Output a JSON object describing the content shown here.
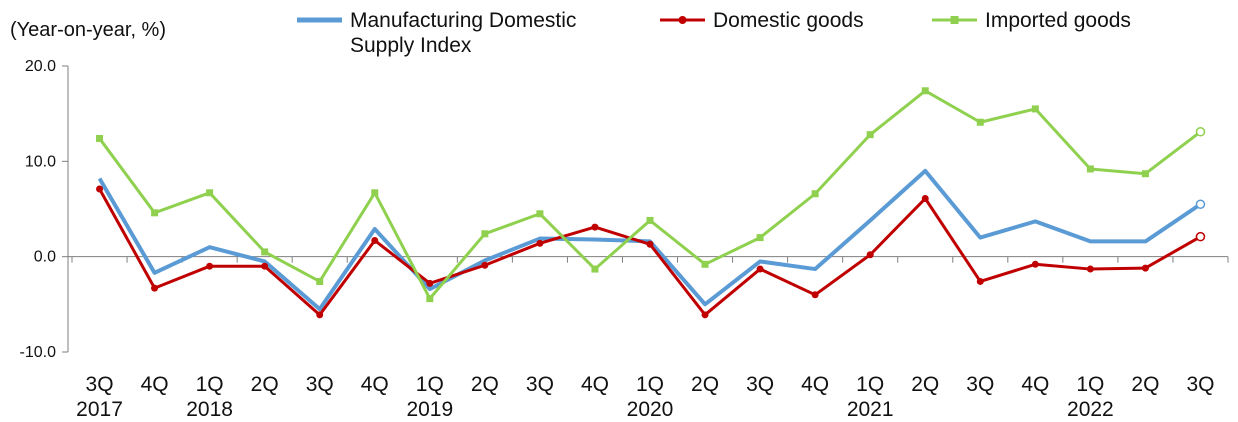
{
  "chart_data": {
    "type": "line",
    "unit_label": "(Year-on-year, %)",
    "categories": [
      "3Q 2017",
      "4Q",
      "1Q 2018",
      "2Q",
      "3Q",
      "4Q",
      "1Q 2019",
      "2Q",
      "3Q",
      "4Q",
      "1Q 2020",
      "2Q",
      "3Q",
      "4Q",
      "1Q 2021",
      "2Q",
      "3Q",
      "4Q",
      "1Q 2022",
      "2Q",
      "3Q"
    ],
    "x_tick_lines": [
      [
        "3Q",
        "2017"
      ],
      [
        "4Q"
      ],
      [
        "1Q",
        "2018"
      ],
      [
        "2Q"
      ],
      [
        "3Q"
      ],
      [
        "4Q"
      ],
      [
        "1Q",
        "2019"
      ],
      [
        "2Q"
      ],
      [
        "3Q"
      ],
      [
        "4Q"
      ],
      [
        "1Q",
        "2020"
      ],
      [
        "2Q"
      ],
      [
        "3Q"
      ],
      [
        "4Q"
      ],
      [
        "1Q",
        "2021"
      ],
      [
        "2Q"
      ],
      [
        "3Q"
      ],
      [
        "4Q"
      ],
      [
        "1Q",
        "2022"
      ],
      [
        "2Q"
      ],
      [
        "3Q"
      ]
    ],
    "y_ticks": [
      "20.0",
      "10.0",
      "0.0",
      "-10.0"
    ],
    "y_tick_values": [
      20,
      10,
      0,
      -10
    ],
    "ylim": [
      -10,
      20
    ],
    "grid": false,
    "legend_position": "top",
    "series": [
      {
        "name": "Manufacturing Domestic Supply Index",
        "legend_lines": [
          "Manufacturing Domestic",
          "Supply Index"
        ],
        "color": "#5B9BD5",
        "marker": "none",
        "last_point_open": true,
        "values": [
          8.2,
          -1.7,
          1.0,
          -0.5,
          -5.5,
          2.9,
          -3.4,
          -0.4,
          1.9,
          1.8,
          1.6,
          -5.0,
          -0.5,
          -1.3,
          3.8,
          9.0,
          2.0,
          3.7,
          1.6,
          1.6,
          5.5
        ]
      },
      {
        "name": "Domestic goods",
        "legend_lines": [
          "Domestic goods"
        ],
        "color": "#C00000",
        "marker": "circle",
        "last_point_open": true,
        "values": [
          7.1,
          -3.3,
          -1.0,
          -1.0,
          -6.1,
          1.7,
          -2.8,
          -0.9,
          1.4,
          3.1,
          1.3,
          -6.1,
          -1.3,
          -4.0,
          0.2,
          6.1,
          -2.6,
          -0.8,
          -1.3,
          -1.2,
          2.1
        ]
      },
      {
        "name": "Imported goods",
        "legend_lines": [
          "Imported goods"
        ],
        "color": "#8FD14F",
        "marker": "square",
        "last_point_open": true,
        "values": [
          12.4,
          4.6,
          6.7,
          0.5,
          -2.6,
          6.7,
          -4.4,
          2.4,
          4.5,
          -1.3,
          3.8,
          -0.8,
          2.0,
          6.6,
          12.8,
          17.4,
          14.1,
          15.5,
          9.2,
          8.7,
          13.1
        ]
      }
    ]
  }
}
